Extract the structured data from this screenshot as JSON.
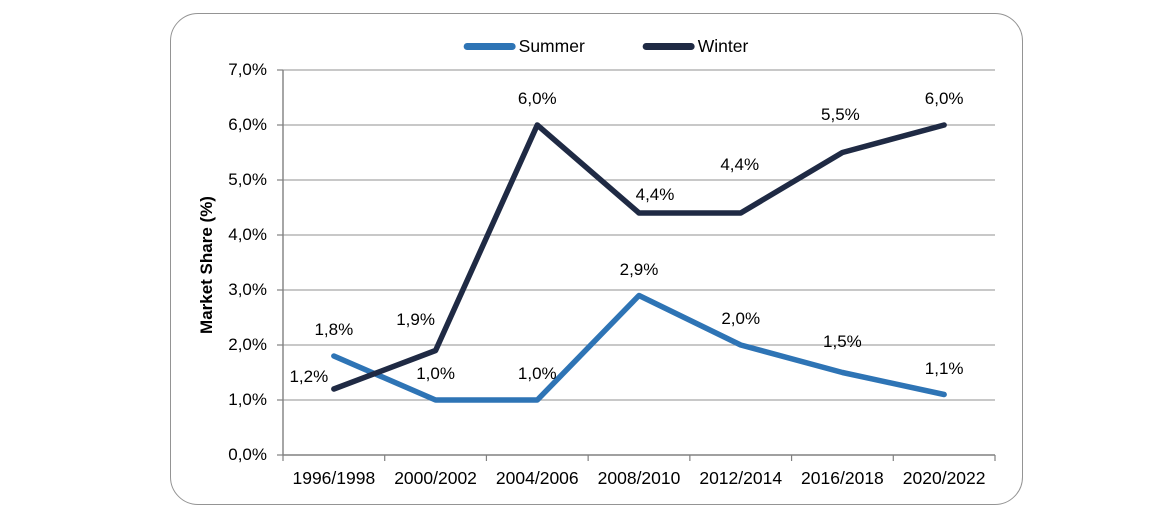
{
  "chart_data": {
    "type": "line",
    "title": "",
    "xlabel": "",
    "ylabel": "Market Share (%)",
    "categories": [
      "1996/1998",
      "2000/2002",
      "2004/2006",
      "2008/2010",
      "2012/2014",
      "2016/2018",
      "2020/2022"
    ],
    "series": [
      {
        "name": "Summer",
        "color": "#2E74B5",
        "values": [
          1.8,
          1.0,
          1.0,
          2.9,
          2.0,
          1.5,
          1.1
        ],
        "point_labels": [
          "1,8%",
          "1,0%",
          "1,0%",
          "2,9%",
          "2,0%",
          "1,5%",
          "1,1%"
        ]
      },
      {
        "name": "Winter",
        "color": "#1F2A44",
        "values": [
          1.2,
          1.9,
          6.0,
          4.4,
          4.4,
          5.5,
          6.0
        ],
        "point_labels": [
          "1,2%",
          "1,9%",
          "6,0%",
          "4,4%",
          "4,4%",
          "5,5%",
          "6,0%"
        ]
      }
    ],
    "y_axis": {
      "min": 0,
      "max": 7,
      "step": 1,
      "tick_labels": [
        "0,0%",
        "1,0%",
        "2,0%",
        "3,0%",
        "4,0%",
        "5,0%",
        "6,0%",
        "7,0%"
      ]
    },
    "grid": "horizontal gridlines on",
    "legend_position": "top",
    "colors": {
      "gridline": "#A8A8A8",
      "axis": "#808080",
      "text": "#000000",
      "panel_border": "#949494",
      "background": "#FFFFFF"
    }
  }
}
